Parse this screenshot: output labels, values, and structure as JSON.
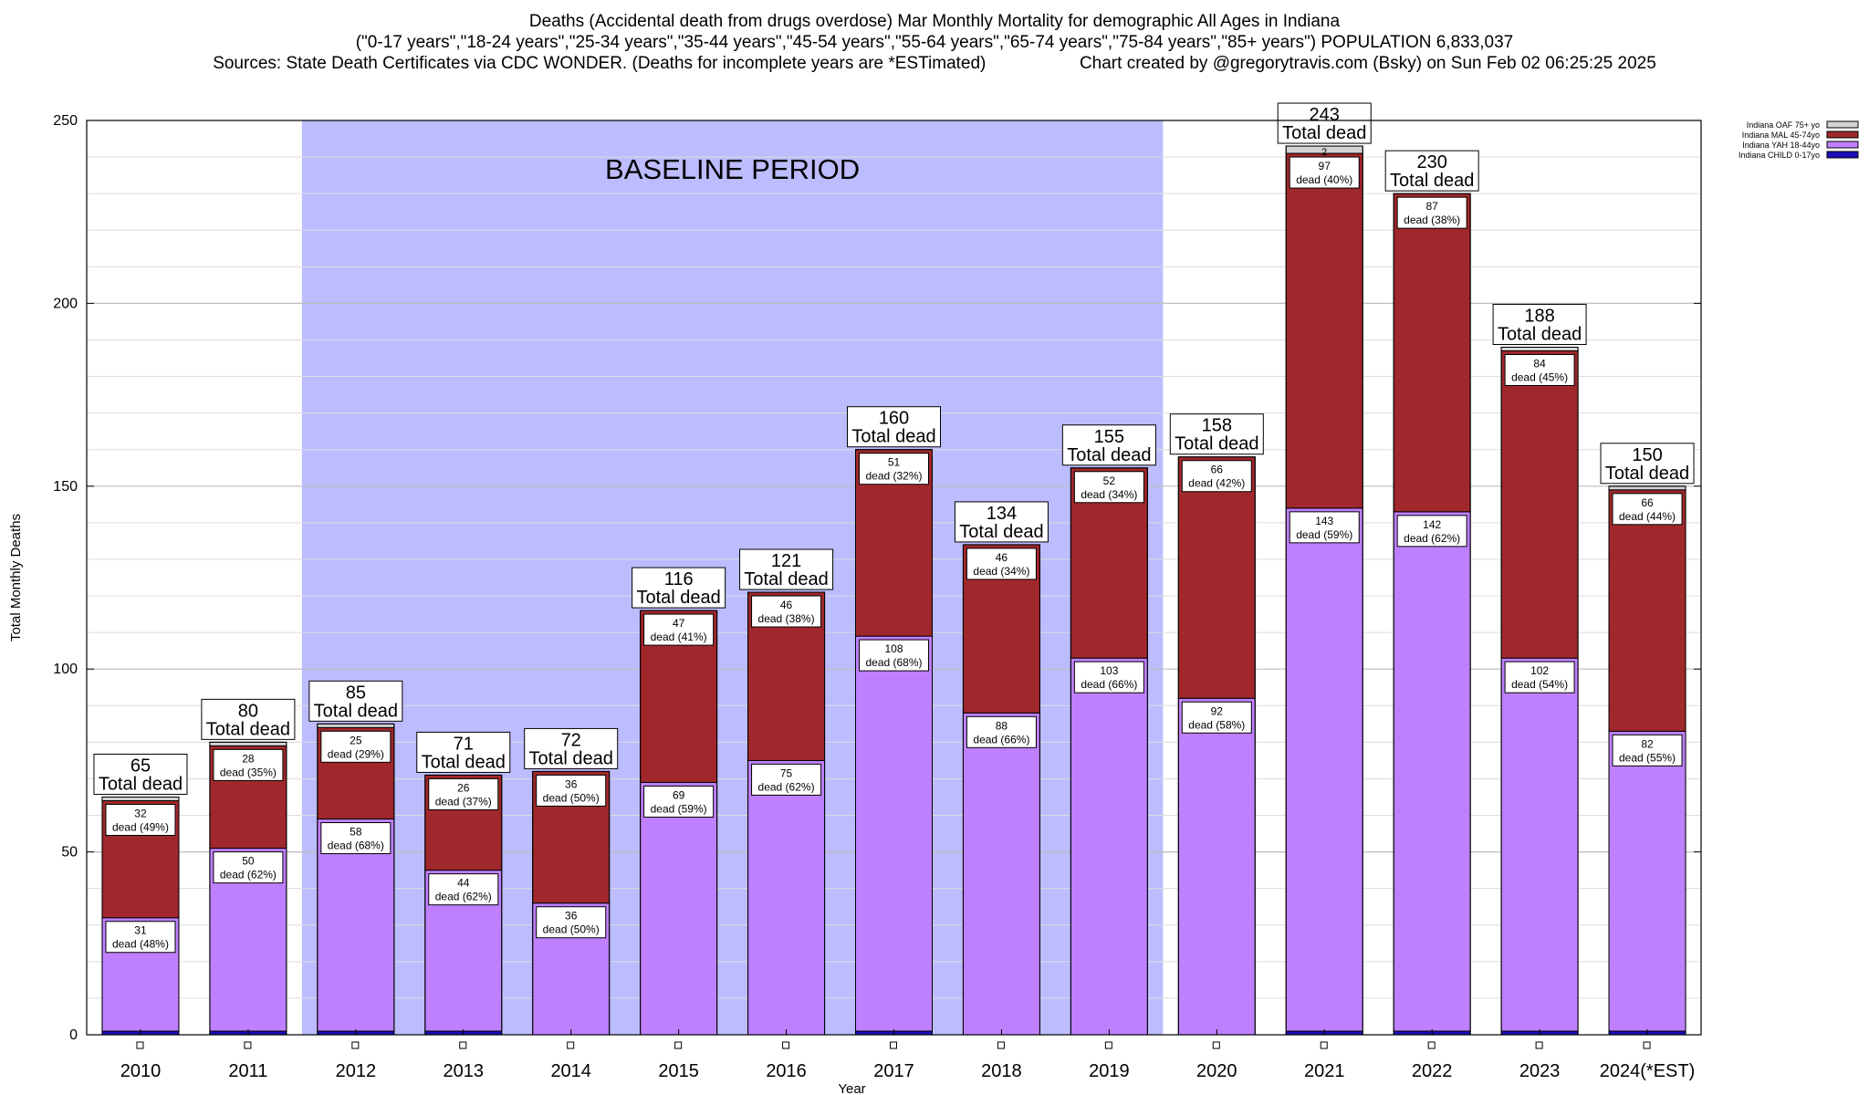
{
  "title": {
    "line1": "Deaths (Accidental death from drugs overdose) Mar Monthly Mortality for demographic All Ages in Indiana",
    "line2": "(\"0-17 years\",\"18-24 years\",\"25-34 years\",\"35-44 years\",\"45-54 years\",\"55-64 years\",\"65-74 years\",\"75-84 years\",\"85+ years\") POPULATION 6,833,037",
    "sources": "Sources: State Death Certificates via CDC WONDER. (Deaths for incomplete years are *ESTimated)",
    "credit": "Chart created by @gregorytravis.com (Bsky) on Sun Feb 02 06:25:25 2025"
  },
  "chart_data": {
    "type": "bar",
    "stacked": true,
    "xlabel": "Year",
    "ylabel": "Total Monthly Deaths",
    "ylim": [
      0,
      250
    ],
    "yticks": [
      0,
      50,
      100,
      150,
      200,
      250
    ],
    "grid": true,
    "legend_position": "top-right",
    "baseline_label": "BASELINE PERIOD",
    "baseline_range": [
      "2012",
      "2019"
    ],
    "total_suffix": "Total dead",
    "dead_word": "dead",
    "categories": [
      "2010",
      "2011",
      "2012",
      "2013",
      "2014",
      "2015",
      "2016",
      "2017",
      "2018",
      "2019",
      "2020",
      "2021",
      "2022",
      "2023",
      "2024(*EST)"
    ],
    "totals": [
      65,
      80,
      85,
      71,
      72,
      116,
      121,
      160,
      134,
      155,
      158,
      243,
      230,
      188,
      150
    ],
    "series": [
      {
        "name": "Indiana CHILD 0-17yo",
        "color": "#1a0fb8",
        "values": [
          1,
          1,
          1,
          1,
          0,
          0,
          0,
          1,
          0,
          0,
          0,
          1,
          1,
          1,
          1
        ]
      },
      {
        "name": "Indiana YAH 18-44yo",
        "color": "#bf80ff",
        "values": [
          31,
          50,
          58,
          44,
          36,
          69,
          75,
          108,
          88,
          103,
          92,
          143,
          142,
          102,
          82
        ],
        "pct": [
          "48%",
          "62%",
          "68%",
          "62%",
          "50%",
          "59%",
          "62%",
          "68%",
          "66%",
          "66%",
          "58%",
          "59%",
          "62%",
          "54%",
          "55%"
        ]
      },
      {
        "name": "Indiana MAL 45-74yo",
        "color": "#a0282c",
        "values": [
          32,
          28,
          25,
          26,
          36,
          47,
          46,
          51,
          46,
          52,
          66,
          97,
          87,
          84,
          66
        ],
        "pct": [
          "49%",
          "35%",
          "29%",
          "37%",
          "50%",
          "41%",
          "38%",
          "32%",
          "34%",
          "34%",
          "42%",
          "40%",
          "38%",
          "45%",
          "44%"
        ]
      },
      {
        "name": "Indiana OAF 75+ yo",
        "color": "#d3d3d3",
        "values": [
          1,
          1,
          1,
          0,
          0,
          0,
          0,
          0,
          0,
          0,
          0,
          2,
          0,
          1,
          1
        ],
        "label_values": [
          null,
          null,
          null,
          null,
          null,
          null,
          null,
          null,
          null,
          null,
          null,
          2,
          null,
          null,
          null
        ]
      }
    ]
  }
}
